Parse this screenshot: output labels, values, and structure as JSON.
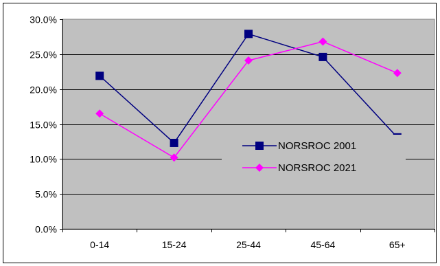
{
  "chart_data": {
    "type": "line",
    "title": "",
    "xlabel": "",
    "ylabel": "",
    "categories": [
      "0-14",
      "15-24",
      "25-44",
      "45-64",
      "65+"
    ],
    "y_ticks": [
      "0.0%",
      "5.0%",
      "10.0%",
      "15.0%",
      "20.0%",
      "25.0%",
      "30.0%"
    ],
    "ylim": [
      0,
      30
    ],
    "y_unit": "%",
    "grid": true,
    "legend_position": "right",
    "plot_background": "#c0c0c0",
    "series": [
      {
        "name": "NORSROC 2001",
        "values": [
          21.9,
          12.3,
          27.9,
          24.6,
          13.1
        ],
        "color": "#000080",
        "marker": "square"
      },
      {
        "name": "NORSROC 2021",
        "values": [
          16.5,
          10.2,
          24.1,
          26.8,
          22.3
        ],
        "color": "#ff00ff",
        "marker": "diamond"
      }
    ]
  }
}
